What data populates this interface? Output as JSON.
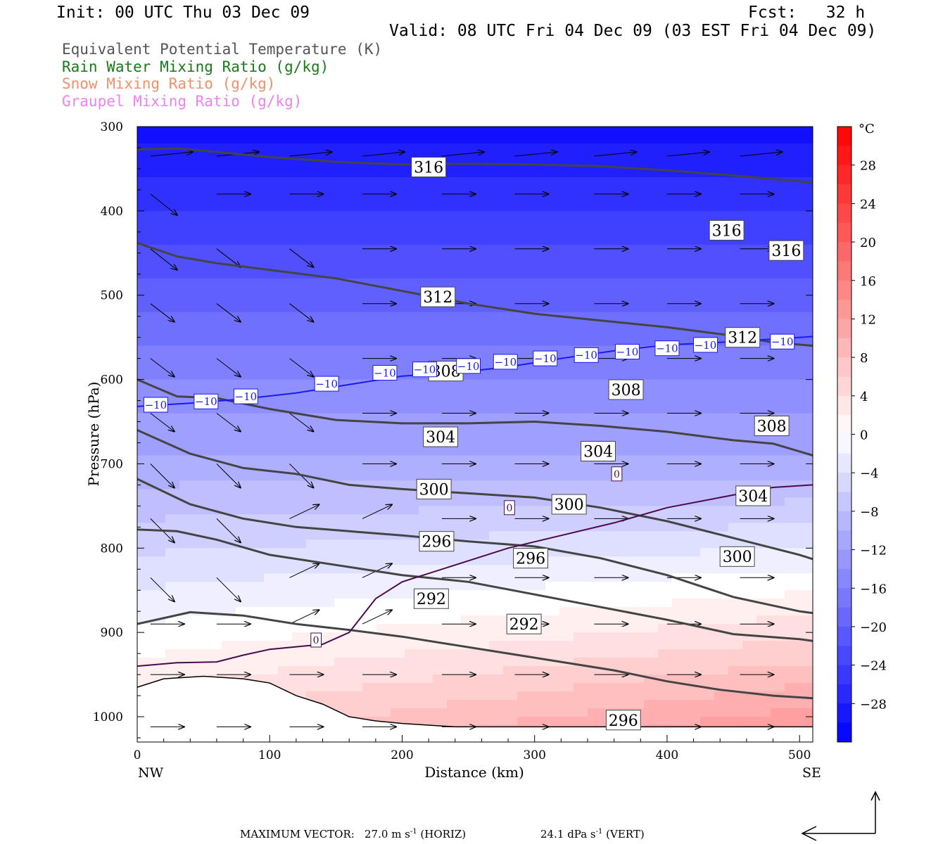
{
  "header": {
    "init": "Init: 00 UTC Thu 03 Dec 09",
    "fcst": "Fcst:   32 h",
    "valid": "Valid: 08 UTC Fri 04 Dec 09 (03 EST Fri 04 Dec 09)"
  },
  "legend": [
    {
      "label": "Equivalent Potential Temperature (K)",
      "color": "#555555"
    },
    {
      "label": "Rain Water Mixing Ratio (g/kg)",
      "color": "#1a7a1a"
    },
    {
      "label": "Snow Mixing Ratio (g/kg)",
      "color": "#f0906a"
    },
    {
      "label": "Graupel Mixing Ratio (g/kg)",
      "color": "#ee82ee"
    }
  ],
  "footer": {
    "max_vector_label": "MAXIMUM VECTOR:",
    "horiz_value": "27.0",
    "horiz_unit": "m s",
    "horiz_exp": "-1",
    "horiz_tag": "(HORIZ)",
    "vert_value": "24.1",
    "vert_unit": "dPa s",
    "vert_exp": "-1",
    "vert_tag": "(VERT)"
  },
  "chart_data": {
    "type": "contour",
    "xlabel": "Distance (km)",
    "ylabel": "Pressure (hPa)",
    "x_ticks": [
      0,
      100,
      200,
      300,
      400,
      500
    ],
    "xlim": [
      0,
      510
    ],
    "y_ticks": [
      300,
      400,
      500,
      600,
      700,
      800,
      900,
      1000
    ],
    "ylim": [
      300,
      1030
    ],
    "x_endpoints": {
      "left": "NW",
      "right": "SE"
    },
    "colorbar": {
      "unit": "°C",
      "range": [
        -32,
        32
      ],
      "ticks": [
        28,
        24,
        20,
        16,
        12,
        8,
        4,
        0,
        -4,
        -8,
        -12,
        -16,
        -20,
        -24,
        -28
      ],
      "tick_labels": [
        "28",
        "24",
        "20",
        "16",
        "12",
        "8",
        "4",
        "0",
        "−4",
        "−8",
        "−12",
        "−16",
        "−20",
        "−24",
        "−28"
      ],
      "cold_color": "#0000ff",
      "warm_color": "#ff0000"
    },
    "theta_e_contours": [
      {
        "value": 316,
        "points": [
          [
            0,
            327
          ],
          [
            30,
            326
          ],
          [
            60,
            330
          ],
          [
            100,
            336
          ],
          [
            150,
            342
          ],
          [
            200,
            345
          ],
          [
            250,
            344
          ],
          [
            300,
            345
          ],
          [
            350,
            347
          ],
          [
            400,
            352
          ],
          [
            450,
            358
          ],
          [
            500,
            365
          ],
          [
            510,
            366
          ]
        ]
      },
      {
        "value": 312,
        "points": [
          [
            0,
            438
          ],
          [
            30,
            454
          ],
          [
            60,
            462
          ],
          [
            100,
            470
          ],
          [
            150,
            480
          ],
          [
            200,
            495
          ],
          [
            250,
            510
          ],
          [
            300,
            522
          ],
          [
            350,
            530
          ],
          [
            400,
            538
          ],
          [
            450,
            548
          ],
          [
            480,
            556
          ],
          [
            510,
            560
          ]
        ]
      },
      {
        "value": 308,
        "points": [
          [
            0,
            600
          ],
          [
            30,
            620
          ],
          [
            60,
            622
          ],
          [
            100,
            635
          ],
          [
            150,
            648
          ],
          [
            200,
            652
          ],
          [
            250,
            652
          ],
          [
            300,
            650
          ],
          [
            350,
            655
          ],
          [
            400,
            662
          ],
          [
            450,
            672
          ],
          [
            480,
            676
          ],
          [
            510,
            690
          ]
        ]
      },
      {
        "value": 304,
        "points": [
          [
            0,
            660
          ],
          [
            40,
            688
          ],
          [
            80,
            705
          ],
          [
            120,
            712
          ],
          [
            160,
            725
          ],
          [
            200,
            730
          ],
          [
            250,
            735
          ],
          [
            300,
            740
          ],
          [
            350,
            752
          ],
          [
            400,
            768
          ],
          [
            450,
            788
          ],
          [
            500,
            808
          ],
          [
            510,
            813
          ]
        ]
      },
      {
        "value": 300,
        "points": [
          [
            0,
            718
          ],
          [
            40,
            748
          ],
          [
            80,
            765
          ],
          [
            120,
            775
          ],
          [
            160,
            780
          ],
          [
            200,
            785
          ],
          [
            250,
            792
          ],
          [
            300,
            798
          ],
          [
            350,
            812
          ],
          [
            400,
            832
          ],
          [
            450,
            858
          ],
          [
            500,
            875
          ],
          [
            510,
            877
          ]
        ]
      },
      {
        "value": 296,
        "points": [
          [
            0,
            778
          ],
          [
            30,
            780
          ],
          [
            60,
            790
          ],
          [
            100,
            808
          ],
          [
            150,
            820
          ],
          [
            200,
            832
          ],
          [
            250,
            840
          ],
          [
            300,
            855
          ],
          [
            350,
            870
          ],
          [
            400,
            885
          ],
          [
            450,
            902
          ],
          [
            500,
            908
          ],
          [
            510,
            910
          ]
        ]
      },
      {
        "value": 292,
        "points": [
          [
            0,
            890
          ],
          [
            40,
            876
          ],
          [
            80,
            880
          ],
          [
            120,
            890
          ],
          [
            160,
            897
          ],
          [
            200,
            905
          ],
          [
            240,
            915
          ],
          [
            280,
            925
          ],
          [
            320,
            935
          ],
          [
            360,
            945
          ],
          [
            400,
            958
          ],
          [
            440,
            968
          ],
          [
            480,
            975
          ],
          [
            510,
            978
          ]
        ]
      }
    ],
    "freezing_line": [
      [
        0,
        940
      ],
      [
        30,
        936
      ],
      [
        60,
        935
      ],
      [
        80,
        927
      ],
      [
        100,
        920
      ],
      [
        140,
        914
      ],
      [
        160,
        900
      ],
      [
        170,
        880
      ],
      [
        180,
        860
      ],
      [
        200,
        840
      ],
      [
        240,
        820
      ],
      [
        280,
        800
      ],
      [
        320,
        785
      ],
      [
        360,
        770
      ],
      [
        400,
        752
      ],
      [
        440,
        740
      ],
      [
        480,
        728
      ],
      [
        510,
        725
      ]
    ],
    "isotherm_minus10": [
      [
        0,
        632
      ],
      [
        40,
        628
      ],
      [
        80,
        623
      ],
      [
        120,
        616
      ],
      [
        160,
        606
      ],
      [
        200,
        596
      ],
      [
        240,
        592
      ],
      [
        280,
        585
      ],
      [
        320,
        575
      ],
      [
        360,
        566
      ],
      [
        400,
        559
      ],
      [
        440,
        556
      ],
      [
        480,
        552
      ],
      [
        510,
        549
      ]
    ],
    "contour_labels": [
      {
        "text": "316",
        "x": 220,
        "p": 348
      },
      {
        "text": "316",
        "x": 445,
        "p": 423
      },
      {
        "text": "316",
        "x": 490,
        "p": 447
      },
      {
        "text": "312",
        "x": 227,
        "p": 502
      },
      {
        "text": "312",
        "x": 457,
        "p": 550
      },
      {
        "text": "308",
        "x": 233,
        "p": 590
      },
      {
        "text": "308",
        "x": 369,
        "p": 612
      },
      {
        "text": "308",
        "x": 479,
        "p": 655
      },
      {
        "text": "304",
        "x": 229,
        "p": 668
      },
      {
        "text": "304",
        "x": 348,
        "p": 685
      },
      {
        "text": "304",
        "x": 465,
        "p": 738
      },
      {
        "text": "300",
        "x": 224,
        "p": 730
      },
      {
        "text": "300",
        "x": 326,
        "p": 748
      },
      {
        "text": "300",
        "x": 453,
        "p": 810
      },
      {
        "text": "296",
        "x": 226,
        "p": 792
      },
      {
        "text": "296",
        "x": 297,
        "p": 812
      },
      {
        "text": "296",
        "x": 367,
        "p": 1004
      },
      {
        "text": "292",
        "x": 222,
        "p": 860
      },
      {
        "text": "292",
        "x": 292,
        "p": 890
      }
    ],
    "freezing_labels": [
      {
        "text": "0",
        "x": 135,
        "p": 909
      },
      {
        "text": "0",
        "x": 281,
        "p": 752
      },
      {
        "text": "0",
        "x": 362,
        "p": 712
      }
    ],
    "isotherm_labels": [
      {
        "text": "−10",
        "x": 14,
        "p": 630
      },
      {
        "text": "−10",
        "x": 52,
        "p": 626
      },
      {
        "text": "−10",
        "x": 82,
        "p": 620
      },
      {
        "text": "−10",
        "x": 143,
        "p": 605
      },
      {
        "text": "−10",
        "x": 187,
        "p": 592
      },
      {
        "text": "−10",
        "x": 217,
        "p": 588
      },
      {
        "text": "−10",
        "x": 250,
        "p": 584
      },
      {
        "text": "−10",
        "x": 278,
        "p": 579
      },
      {
        "text": "−10",
        "x": 308,
        "p": 575
      },
      {
        "text": "−10",
        "x": 339,
        "p": 571
      },
      {
        "text": "−10",
        "x": 370,
        "p": 567
      },
      {
        "text": "−10",
        "x": 400,
        "p": 563
      },
      {
        "text": "−10",
        "x": 429,
        "p": 559
      },
      {
        "text": "−10",
        "x": 487,
        "p": 555
      }
    ]
  }
}
